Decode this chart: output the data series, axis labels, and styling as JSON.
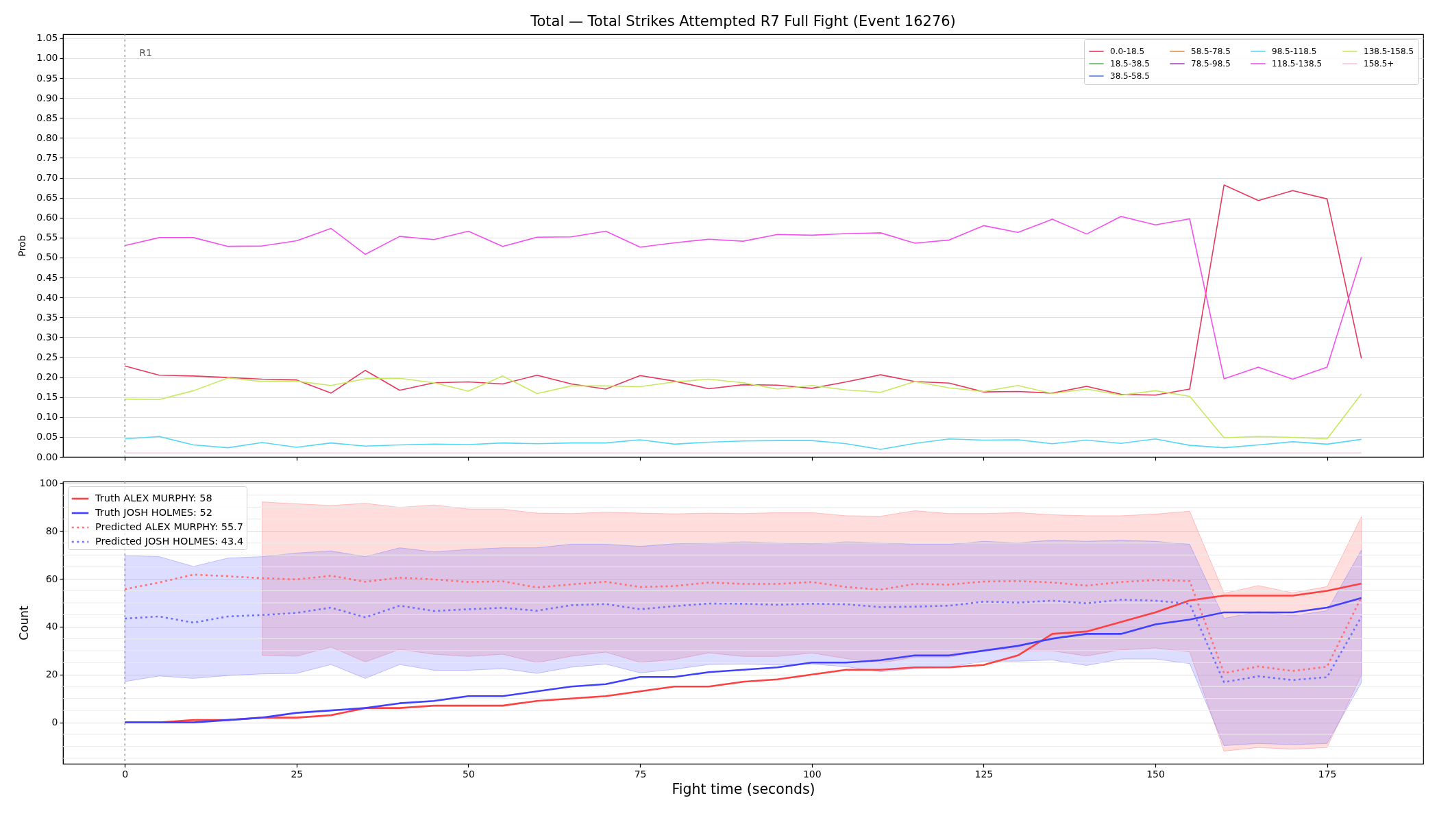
{
  "chart_data": [
    {
      "type": "line",
      "title": "Total — Total Strikes Attempted R7 Full Fight (Event 16276)",
      "ylabel": "Prob",
      "x": [
        0,
        5,
        10,
        15,
        20,
        25,
        30,
        35,
        40,
        45,
        50,
        55,
        60,
        65,
        70,
        75,
        80,
        85,
        90,
        95,
        100,
        105,
        110,
        115,
        120,
        125,
        130,
        135,
        140,
        145,
        150,
        155,
        160,
        165,
        170,
        175,
        180
      ],
      "series": [
        {
          "name": "0.0-18.5",
          "color": "#e8385c",
          "values": [
            0.228,
            0.205,
            0.203,
            0.199,
            0.195,
            0.193,
            0.16,
            0.217,
            0.167,
            0.186,
            0.188,
            0.183,
            0.205,
            0.183,
            0.17,
            0.204,
            0.19,
            0.171,
            0.181,
            0.18,
            0.172,
            0.188,
            0.206,
            0.189,
            0.185,
            0.163,
            0.164,
            0.16,
            0.177,
            0.157,
            0.155,
            0.17,
            0.682,
            0.643,
            0.668,
            0.647,
            0.247
          ]
        },
        {
          "name": "18.5-38.5",
          "color": "#5bbd5b",
          "values": [
            null,
            null,
            null,
            null,
            null,
            null,
            null,
            null,
            null,
            null,
            null,
            null,
            null,
            null,
            null,
            null,
            null,
            null,
            null,
            null,
            null,
            null,
            null,
            null,
            null,
            null,
            null,
            null,
            null,
            null,
            null,
            null,
            null,
            null,
            null,
            null,
            null
          ]
        },
        {
          "name": "38.5-58.5",
          "color": "#5b7be0",
          "values": [
            null,
            null,
            null,
            null,
            null,
            null,
            null,
            null,
            null,
            null,
            null,
            null,
            null,
            null,
            null,
            null,
            null,
            null,
            null,
            null,
            null,
            null,
            null,
            null,
            null,
            null,
            null,
            null,
            null,
            null,
            null,
            null,
            null,
            null,
            null,
            null,
            null
          ]
        },
        {
          "name": "58.5-78.5",
          "color": "#f08c4a",
          "values": [
            null,
            null,
            null,
            null,
            null,
            null,
            null,
            null,
            null,
            null,
            null,
            null,
            null,
            null,
            null,
            null,
            null,
            null,
            null,
            null,
            null,
            null,
            null,
            null,
            null,
            null,
            null,
            null,
            null,
            null,
            null,
            null,
            null,
            null,
            null,
            null,
            null
          ]
        },
        {
          "name": "78.5-98.5",
          "color": "#a24bc0",
          "values": [
            null,
            null,
            null,
            null,
            null,
            null,
            null,
            null,
            null,
            null,
            null,
            null,
            null,
            null,
            null,
            null,
            null,
            null,
            null,
            null,
            null,
            null,
            null,
            null,
            null,
            null,
            null,
            null,
            null,
            null,
            null,
            null,
            null,
            null,
            null,
            null,
            null
          ]
        },
        {
          "name": "98.5-118.5",
          "color": "#55d8f5",
          "values": [
            0.045,
            0.051,
            0.03,
            0.023,
            0.036,
            0.024,
            0.035,
            0.027,
            0.03,
            0.032,
            0.031,
            0.035,
            0.033,
            0.035,
            0.035,
            0.043,
            0.032,
            0.037,
            0.04,
            0.041,
            0.041,
            0.033,
            0.019,
            0.034,
            0.045,
            0.042,
            0.043,
            0.033,
            0.042,
            0.034,
            0.045,
            0.029,
            0.023,
            0.03,
            0.038,
            0.032,
            0.044
          ]
        },
        {
          "name": "118.5-138.5",
          "color": "#f450f0",
          "values": [
            0.53,
            0.55,
            0.55,
            0.528,
            0.529,
            0.542,
            0.573,
            0.508,
            0.553,
            0.545,
            0.566,
            0.528,
            0.551,
            0.552,
            0.566,
            0.526,
            0.537,
            0.546,
            0.541,
            0.558,
            0.556,
            0.56,
            0.562,
            0.536,
            0.544,
            0.58,
            0.563,
            0.596,
            0.559,
            0.603,
            0.582,
            0.597,
            0.196,
            0.225,
            0.195,
            0.225,
            0.501
          ]
        },
        {
          "name": "138.5-158.5",
          "color": "#c5eb5c",
          "values": [
            0.145,
            0.144,
            0.166,
            0.198,
            0.189,
            0.19,
            0.179,
            0.196,
            0.197,
            0.186,
            0.165,
            0.203,
            0.159,
            0.178,
            0.178,
            0.176,
            0.188,
            0.195,
            0.186,
            0.17,
            0.179,
            0.168,
            0.162,
            0.189,
            0.173,
            0.164,
            0.179,
            0.159,
            0.17,
            0.155,
            0.166,
            0.152,
            0.048,
            0.051,
            0.049,
            0.045,
            0.158
          ]
        },
        {
          "name": "158.5+",
          "color": "#fbc1d6",
          "values": [
            0.01,
            0.01,
            0.01,
            0.01,
            0.01,
            0.01,
            0.01,
            0.01,
            0.01,
            0.01,
            0.01,
            0.01,
            0.01,
            0.01,
            0.01,
            0.01,
            0.01,
            0.01,
            0.01,
            0.01,
            0.01,
            0.01,
            0.01,
            0.01,
            0.01,
            0.01,
            0.01,
            0.01,
            0.01,
            0.01,
            0.01,
            0.01,
            0.01,
            0.01,
            0.01,
            0.01,
            0.01
          ]
        }
      ],
      "xlim": [
        -9,
        189
      ],
      "xticks": [
        0,
        25,
        50,
        75,
        100,
        125,
        150,
        175
      ],
      "ylim": [
        0,
        1.06
      ],
      "yticks": [
        {
          "value": 0,
          "label": "0.00"
        },
        0.05,
        {
          "value": 0.1,
          "label": "0.10"
        },
        0.15,
        {
          "value": 0.2,
          "label": "0.20"
        },
        0.25,
        {
          "value": 0.3,
          "label": "0.30"
        },
        0.35,
        {
          "value": 0.4,
          "label": "0.40"
        },
        0.45,
        {
          "value": 0.5,
          "label": "0.50"
        },
        0.55,
        {
          "value": 0.6,
          "label": "0.60"
        },
        0.65,
        {
          "value": 0.7,
          "label": "0.70"
        },
        0.75,
        {
          "value": 0.8,
          "label": "0.80"
        },
        0.85,
        {
          "value": 0.9,
          "label": "0.90"
        },
        0.95,
        {
          "value": 1,
          "label": "1.00"
        },
        1.05
      ],
      "tick_labels": "y",
      "grid": "y",
      "legend": "top right",
      "ref_lines": [
        {
          "axis": "x",
          "value": 0,
          "label": "R1",
          "color": "#808080",
          "line_style": "dotted"
        }
      ]
    },
    {
      "type": "line",
      "xlabel": "Fight time (seconds)",
      "ylabel": "Count",
      "x": [
        0,
        5,
        10,
        15,
        20,
        25,
        30,
        35,
        40,
        45,
        50,
        55,
        60,
        65,
        70,
        75,
        80,
        85,
        90,
        95,
        100,
        105,
        110,
        115,
        120,
        125,
        130,
        135,
        140,
        145,
        150,
        155,
        160,
        165,
        170,
        175,
        180
      ],
      "series": [
        {
          "name": "Truth ALEX MURPHY: 58",
          "color": "#ff4040",
          "values": [
            0,
            0,
            1,
            1,
            2,
            2,
            3,
            6,
            6,
            7,
            7,
            7,
            9,
            10,
            11,
            13,
            15,
            15,
            17,
            18,
            20,
            22,
            22,
            23,
            23,
            24,
            28,
            37,
            38,
            42,
            46,
            51,
            53,
            53,
            53,
            55,
            58
          ]
        },
        {
          "name": "Truth JOSH HOLMES: 52",
          "color": "#4040ff",
          "values": [
            0,
            0,
            0,
            1,
            2,
            4,
            5,
            6,
            8,
            9,
            11,
            11,
            13,
            15,
            16,
            19,
            19,
            21,
            22,
            23,
            25,
            25,
            26,
            28,
            28,
            30,
            32,
            35,
            37,
            37,
            41,
            43,
            46,
            46,
            46,
            48,
            52
          ]
        },
        {
          "name": "Predicted ALEX MURPHY: 55.7",
          "color": "#ff7070",
          "line_style": "dotted",
          "values": [
            55.7,
            58.5,
            61.8,
            61.1,
            60.3,
            59.8,
            61.3,
            58.8,
            60.5,
            59.8,
            58.7,
            59.0,
            56.4,
            57.7,
            58.8,
            56.6,
            57.0,
            58.5,
            57.9,
            57.9,
            58.7,
            56.6,
            55.5,
            57.9,
            57.6,
            58.9,
            59.1,
            58.5,
            57.2,
            58.7,
            59.5,
            59.1,
            20.6,
            23.4,
            21.5,
            23.3,
            52.4
          ],
          "lower": [
            null,
            null,
            null,
            null,
            28.1,
            27.7,
            31.5,
            25.3,
            30.5,
            28.5,
            27.6,
            28.5,
            25.0,
            27.7,
            29.4,
            25.1,
            26.3,
            29.1,
            27.6,
            27.6,
            29.0,
            26.7,
            24.8,
            27.3,
            27.3,
            29.9,
            29.9,
            29.9,
            27.8,
            30.3,
            31.1,
            29.5,
            -12.0,
            -10.5,
            -11.2,
            -10.5,
            19.8
          ],
          "upper": [
            null,
            null,
            null,
            null,
            92.2,
            91.4,
            90.7,
            91.6,
            89.9,
            90.9,
            89.2,
            89.2,
            87.5,
            87.3,
            87.9,
            87.5,
            87.2,
            87.5,
            87.3,
            87.7,
            87.7,
            86.4,
            86.2,
            88.5,
            87.3,
            87.3,
            87.7,
            86.8,
            86.4,
            86.4,
            87.1,
            88.3,
            54.0,
            57.2,
            54.2,
            56.8,
            86.0
          ]
        },
        {
          "name": "Predicted JOSH HOLMES: 43.4",
          "color": "#7070ff",
          "line_style": "dotted",
          "values": [
            43.4,
            44.3,
            41.7,
            44.3,
            44.9,
            45.8,
            48.0,
            43.9,
            48.8,
            46.6,
            47.3,
            47.9,
            46.7,
            49.0,
            49.5,
            47.3,
            48.6,
            49.7,
            49.6,
            49.2,
            49.6,
            49.4,
            48.2,
            48.4,
            48.8,
            50.5,
            50.1,
            50.9,
            49.8,
            51.3,
            50.9,
            49.6,
            16.8,
            19.3,
            17.7,
            18.9,
            44.2
          ],
          "lower": [
            17.1,
            19.4,
            18.4,
            19.6,
            20.3,
            20.5,
            24.2,
            18.4,
            24.2,
            21.8,
            21.8,
            22.5,
            20.5,
            23.1,
            24.4,
            20.7,
            22.2,
            24.2,
            24.4,
            24.0,
            24.4,
            23.3,
            21.2,
            22.5,
            23.1,
            25.6,
            25.6,
            26.1,
            23.8,
            26.5,
            26.5,
            24.6,
            -9.7,
            -8.8,
            -9.3,
            -8.8,
            16.6
          ],
          "upper": [
            69.8,
            69.3,
            65.2,
            68.7,
            69.3,
            70.8,
            71.7,
            69.3,
            73.0,
            71.3,
            72.3,
            73.0,
            73.0,
            74.5,
            74.5,
            73.6,
            74.7,
            75.0,
            75.5,
            75.1,
            74.7,
            75.5,
            75.1,
            74.5,
            74.5,
            75.7,
            75.1,
            76.2,
            75.7,
            76.2,
            75.7,
            74.5,
            43.5,
            46.3,
            44.6,
            46.7,
            72.1
          ]
        }
      ],
      "xlim": [
        -9,
        189
      ],
      "xticks": [
        0,
        25,
        50,
        75,
        100,
        125,
        150,
        175
      ],
      "ylim": [
        -17.3,
        100.7
      ],
      "yticks": [
        {
          "value": -15,
          "label": null
        },
        {
          "value": -10,
          "label": null
        },
        {
          "value": -5,
          "label": null
        },
        0,
        {
          "value": 5,
          "label": null
        },
        {
          "value": 10,
          "label": null
        },
        {
          "value": 15,
          "label": null
        },
        20,
        {
          "value": 25,
          "label": null
        },
        {
          "value": 30,
          "label": null
        },
        {
          "value": 35,
          "label": null
        },
        40,
        {
          "value": 45,
          "label": null
        },
        {
          "value": 50,
          "label": null
        },
        {
          "value": 55,
          "label": null
        },
        60,
        {
          "value": 65,
          "label": null
        },
        {
          "value": 70,
          "label": null
        },
        {
          "value": 75,
          "label": null
        },
        80,
        {
          "value": 85,
          "label": null
        },
        {
          "value": 90,
          "label": null
        },
        {
          "value": 95,
          "label": null
        },
        100
      ],
      "grid": "y",
      "legend": "top left",
      "ref_lines": [
        {
          "axis": "x",
          "value": 0,
          "color": "#808080",
          "line_style": "dotted"
        }
      ]
    }
  ]
}
